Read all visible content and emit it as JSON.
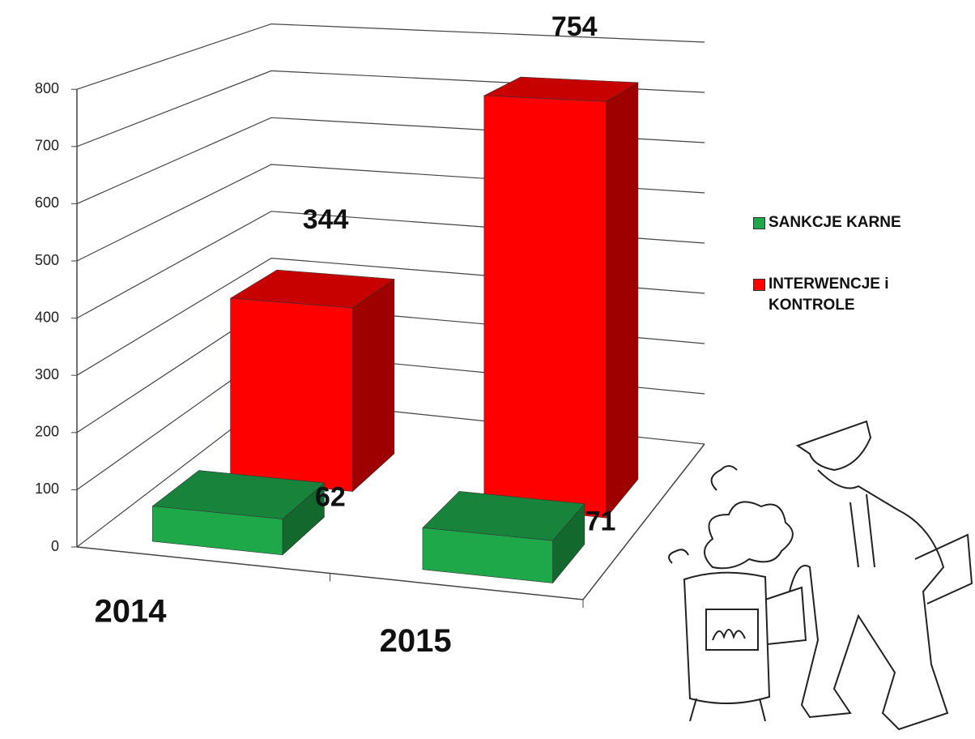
{
  "chart_data": {
    "type": "bar3d",
    "categories": [
      "2014",
      "2015"
    ],
    "series": [
      {
        "name": "SANKCJE KARNE",
        "color": "#1fa84a",
        "values": [
          62,
          71
        ]
      },
      {
        "name": "INTERWENCJE i KONTROLE",
        "color": "#ff0000",
        "values": [
          344,
          754
        ]
      }
    ],
    "ylim": [
      0,
      800
    ],
    "yticks": [
      0,
      100,
      200,
      300,
      400,
      500,
      600,
      700,
      800
    ],
    "grid": true,
    "legend": "right"
  }
}
